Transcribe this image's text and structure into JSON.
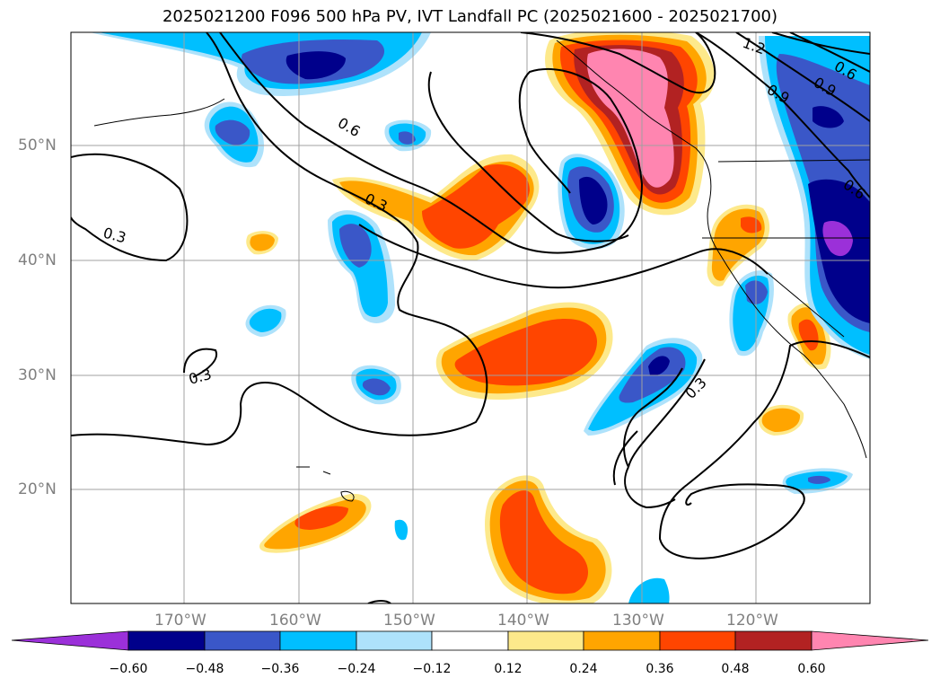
{
  "title": "2025021200 F096 500 hPa PV, IVT Landfall PC (2025021600 - 2025021700)",
  "map": {
    "lat_labels": [
      "50°N",
      "40°N",
      "30°N",
      "20°N"
    ],
    "lon_labels": [
      "170°W",
      "160°W",
      "150°W",
      "140°W",
      "130°W",
      "120°W"
    ],
    "contour_labels": [
      "1.2",
      "0.6",
      "0.9",
      "0.9",
      "0.6",
      "0.6",
      "0.3",
      "0.3",
      "0.3",
      "0.3"
    ]
  },
  "colorbar": {
    "ticks": [
      "−0.60",
      "−0.48",
      "−0.36",
      "−0.24",
      "−0.12",
      "0.12",
      "0.24",
      "0.36",
      "0.48",
      "0.60"
    ],
    "colors": [
      "#9b30d9",
      "#00008b",
      "#3a57c8",
      "#00bfff",
      "#aee2fb",
      "#ffffff",
      "#fde98b",
      "#ffa500",
      "#ff4500",
      "#b22222",
      "#ff85b0"
    ]
  }
}
